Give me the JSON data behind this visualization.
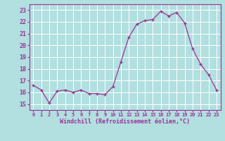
{
  "x": [
    0,
    1,
    2,
    3,
    4,
    5,
    6,
    7,
    8,
    9,
    10,
    11,
    12,
    13,
    14,
    15,
    16,
    17,
    18,
    19,
    20,
    21,
    22,
    23
  ],
  "y": [
    16.6,
    16.2,
    15.1,
    16.1,
    16.2,
    16.0,
    16.2,
    15.9,
    15.9,
    15.8,
    16.5,
    18.6,
    20.7,
    21.8,
    22.1,
    22.2,
    22.9,
    22.5,
    22.8,
    21.9,
    19.7,
    18.4,
    17.5,
    16.2
  ],
  "line_color": "#993399",
  "marker": "+",
  "bg_color": "#b2dfdf",
  "grid_color": "#ffffff",
  "xlabel": "Windchill (Refroidissement éolien,°C)",
  "ylabel_ticks": [
    15,
    16,
    17,
    18,
    19,
    20,
    21,
    22,
    23
  ],
  "xlim": [
    -0.5,
    23.5
  ],
  "ylim": [
    14.5,
    23.5
  ],
  "tick_color": "#993399",
  "spine_color": "#993399"
}
